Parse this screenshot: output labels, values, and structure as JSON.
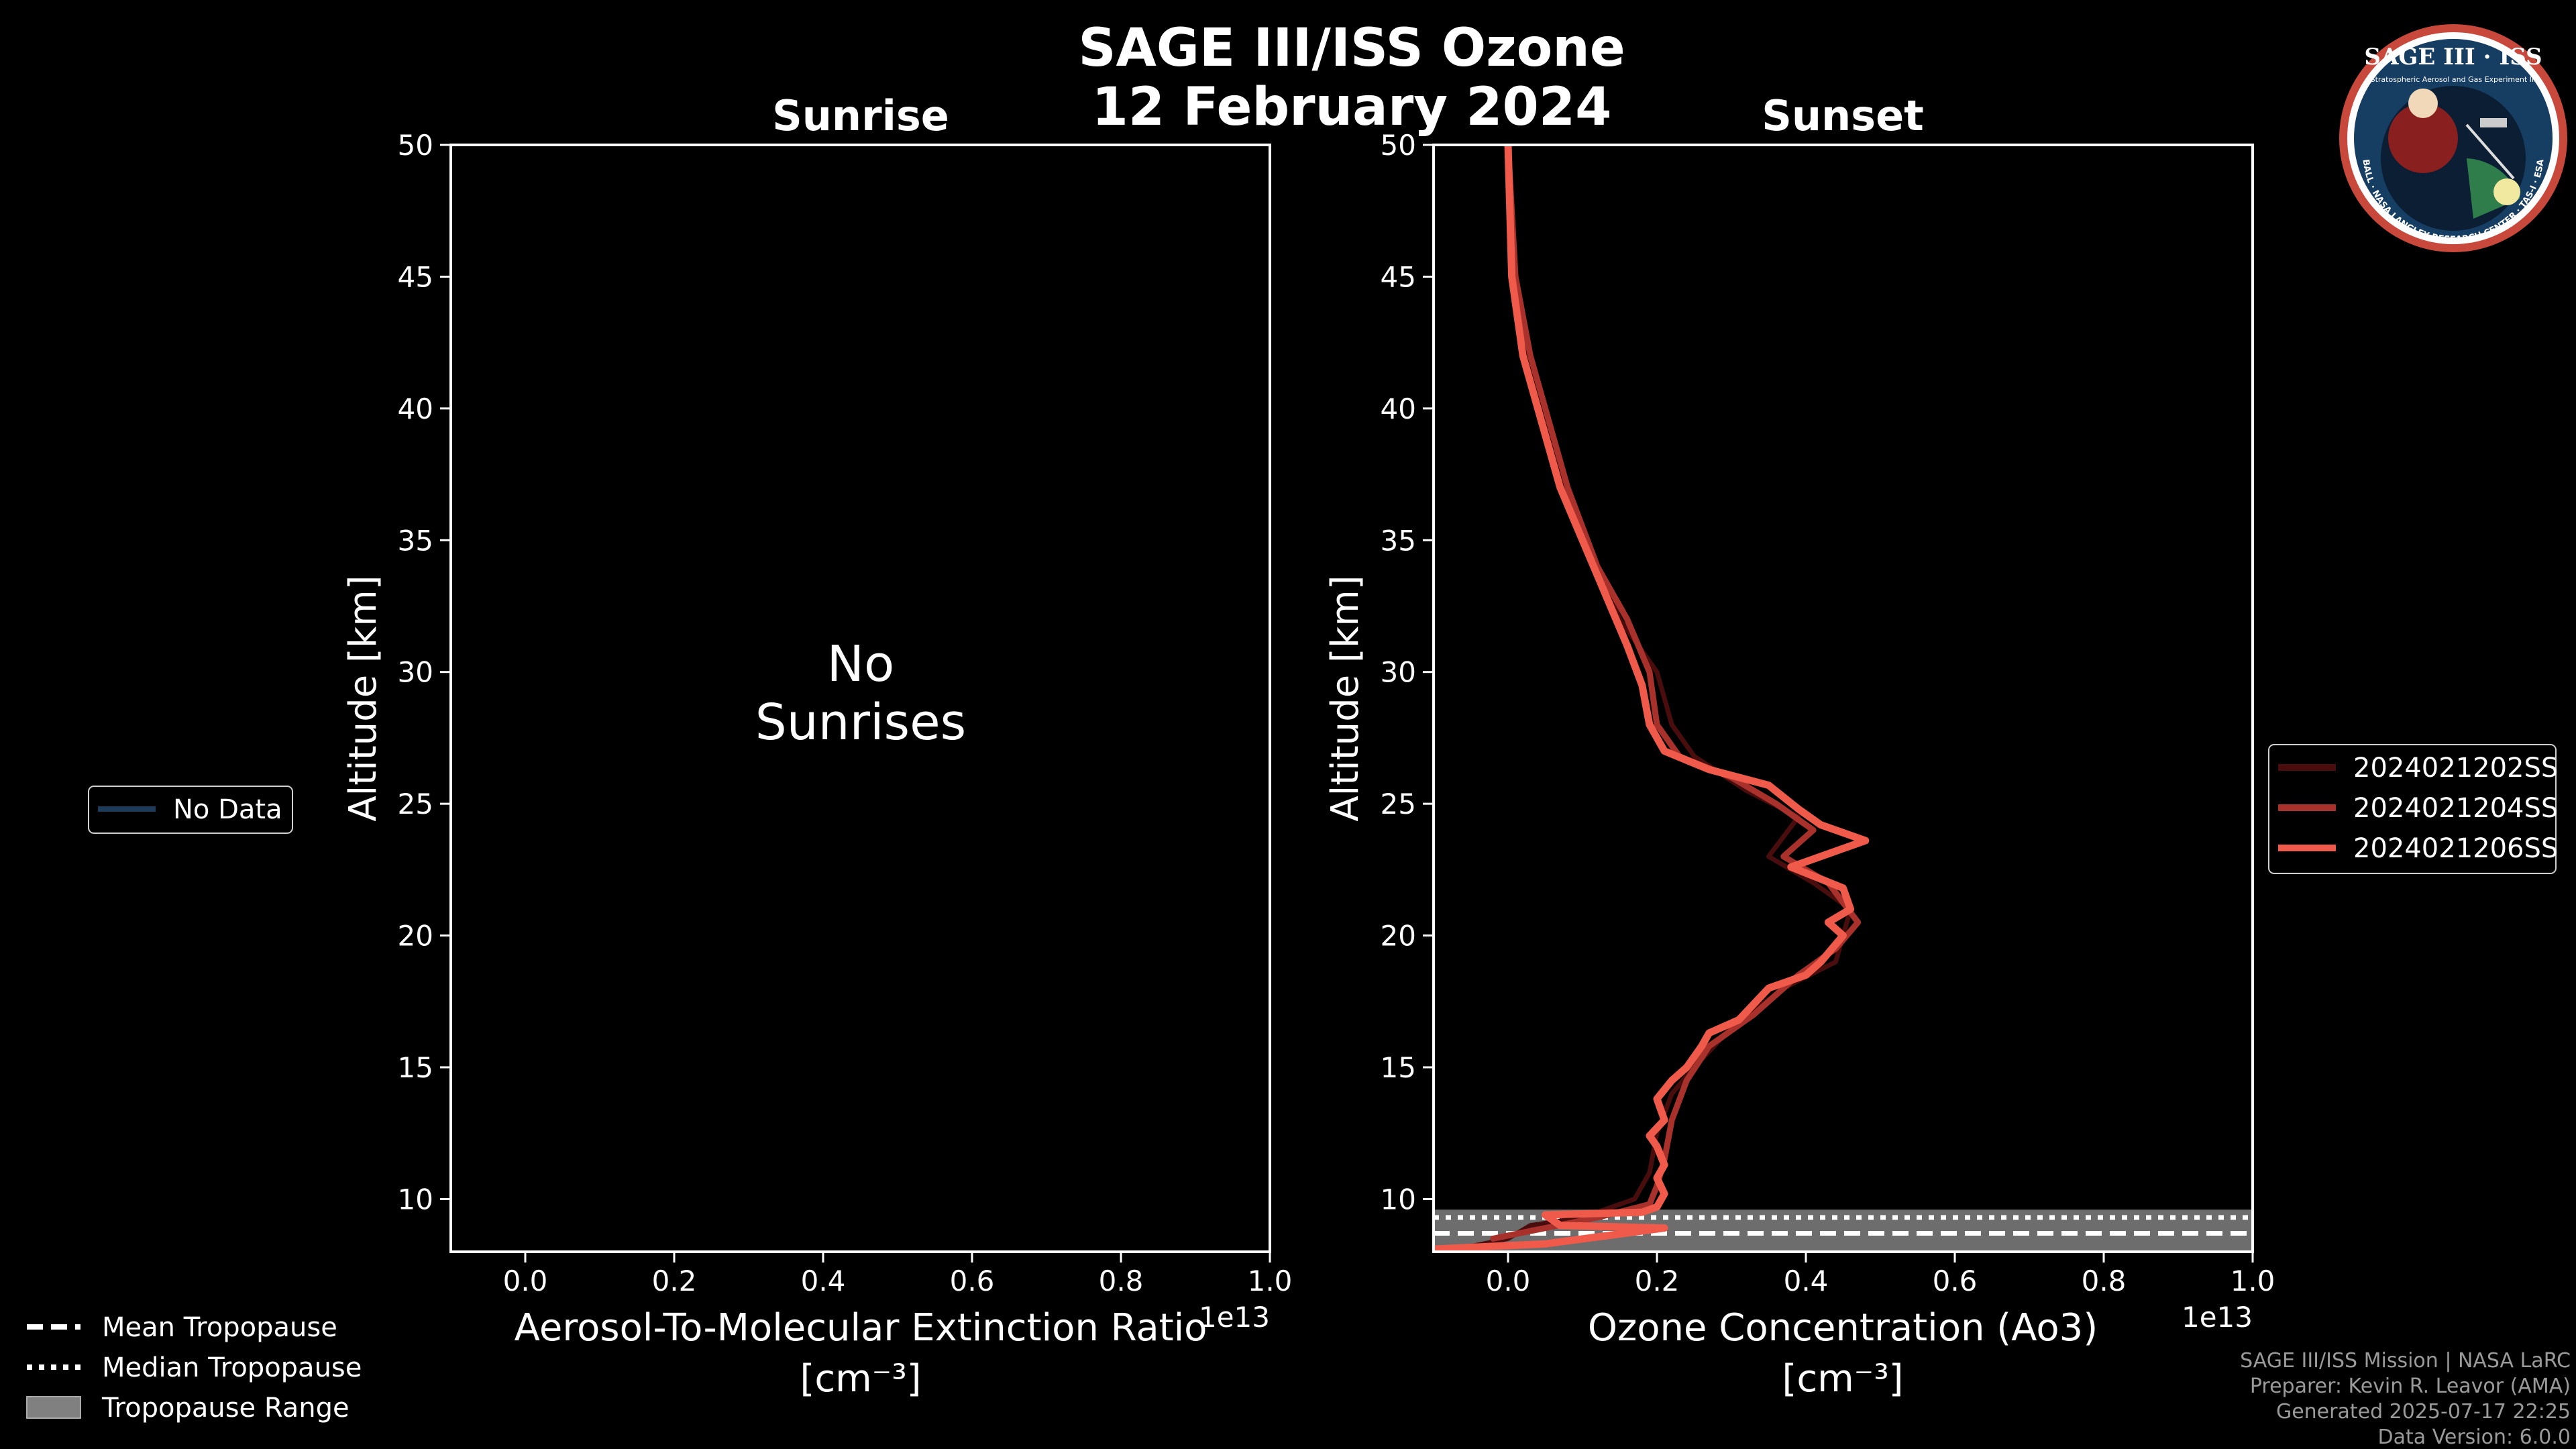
{
  "figure": {
    "title_line1": "SAGE III/ISS Ozone",
    "title_line2": "12 February 2024",
    "credits": [
      "SAGE III/ISS Mission | NASA LaRC",
      "Preparer: Kevin R. Leavor (AMA)",
      "Generated 2025-07-17 22:25",
      "Data Version: 6.0.0"
    ],
    "logo": {
      "title": "SAGE III · ISS",
      "subtitle": "Stratospheric Aerosol and Gas Experiment III",
      "ring_text": "BALL · NASA LANGLEY RESEARCH CENTER · TAS-I · ESA"
    },
    "left_legend": {
      "items": [
        {
          "label": "No Data",
          "color": "#1f3b5a"
        }
      ]
    },
    "tropopause_legend": {
      "items": [
        {
          "label": "Mean Tropopause",
          "style": "dashed"
        },
        {
          "label": "Median Tropopause",
          "style": "dotted"
        },
        {
          "label": "Tropopause Range",
          "style": "patch",
          "color": "#808080"
        }
      ]
    },
    "right_legend": {
      "items": [
        {
          "label": "2024021202SS",
          "color": "#4a0d0d"
        },
        {
          "label": "2024021204SS",
          "color": "#a8322b"
        },
        {
          "label": "2024021206SS",
          "color": "#f05a4a"
        }
      ]
    }
  },
  "chart_data": [
    {
      "type": "line",
      "panel": "left",
      "title": "Sunrise",
      "xlabel": "Aerosol-To-Molecular Extinction Ratio",
      "xlabel_units": "[cm⁻³]",
      "ylabel": "Altitude [km]",
      "xlim": [
        -0.1,
        1.0
      ],
      "ylim": [
        8,
        50
      ],
      "x_ticks": [
        "0.0",
        "0.2",
        "0.4",
        "0.6",
        "0.8",
        "1.0"
      ],
      "y_ticks": [
        "10",
        "15",
        "20",
        "25",
        "30",
        "35",
        "40",
        "45",
        "50"
      ],
      "x_offset_text": "1e13",
      "annotation": "No\nSunrises",
      "series": []
    },
    {
      "type": "line",
      "panel": "right",
      "title": "Sunset",
      "xlabel": "Ozone Concentration (Ao3)",
      "xlabel_units": "[cm⁻³]",
      "ylabel": "Altitude [km]",
      "xlim": [
        -0.1,
        1.0
      ],
      "ylim": [
        8,
        50
      ],
      "x_ticks": [
        "0.0",
        "0.2",
        "0.4",
        "0.6",
        "0.8",
        "1.0"
      ],
      "y_ticks": [
        "10",
        "15",
        "20",
        "25",
        "30",
        "35",
        "40",
        "45",
        "50"
      ],
      "x_offset_text": "1e13",
      "tropopause": {
        "mean": 8.7,
        "median": 9.3,
        "range": [
          8.0,
          9.6
        ]
      },
      "series": [
        {
          "name": "2024021202SS",
          "color": "#4a0d0d",
          "points": [
            [
              0.0,
              50
            ],
            [
              0.01,
              45
            ],
            [
              0.03,
              42
            ],
            [
              0.05,
              40
            ],
            [
              0.08,
              37
            ],
            [
              0.12,
              34
            ],
            [
              0.15,
              32
            ],
            [
              0.2,
              30
            ],
            [
              0.22,
              28
            ],
            [
              0.25,
              26.8
            ],
            [
              0.32,
              25.5
            ],
            [
              0.39,
              24.5
            ],
            [
              0.35,
              23
            ],
            [
              0.41,
              22
            ],
            [
              0.46,
              21
            ],
            [
              0.45,
              20
            ],
            [
              0.44,
              19
            ],
            [
              0.37,
              18
            ],
            [
              0.3,
              16.5
            ],
            [
              0.25,
              15
            ],
            [
              0.22,
              14
            ],
            [
              0.2,
              12.5
            ],
            [
              0.19,
              11
            ],
            [
              0.17,
              10
            ],
            [
              0.1,
              9.3
            ],
            [
              0.03,
              9
            ],
            [
              0.0,
              8.5
            ],
            [
              -0.05,
              8.2
            ]
          ]
        },
        {
          "name": "2024021204SS",
          "color": "#a8322b",
          "points": [
            [
              0.0,
              50
            ],
            [
              0.01,
              45
            ],
            [
              0.03,
              42
            ],
            [
              0.05,
              40
            ],
            [
              0.08,
              37
            ],
            [
              0.12,
              34
            ],
            [
              0.16,
              32
            ],
            [
              0.19,
              30
            ],
            [
              0.2,
              28
            ],
            [
              0.23,
              26.8
            ],
            [
              0.3,
              26
            ],
            [
              0.36,
              25
            ],
            [
              0.41,
              24
            ],
            [
              0.37,
              23
            ],
            [
              0.43,
              22
            ],
            [
              0.47,
              20.5
            ],
            [
              0.44,
              19.5
            ],
            [
              0.39,
              18.5
            ],
            [
              0.33,
              17
            ],
            [
              0.27,
              15.8
            ],
            [
              0.24,
              14.5
            ],
            [
              0.22,
              13
            ],
            [
              0.21,
              11.5
            ],
            [
              0.2,
              10.5
            ],
            [
              0.19,
              9.8
            ],
            [
              0.12,
              9.3
            ],
            [
              0.05,
              8.9
            ],
            [
              -0.02,
              8.5
            ]
          ]
        },
        {
          "name": "2024021206SS",
          "color": "#f05a4a",
          "points": [
            [
              0.0,
              50
            ],
            [
              0.005,
              45
            ],
            [
              0.02,
              42
            ],
            [
              0.04,
              40
            ],
            [
              0.07,
              37
            ],
            [
              0.1,
              35
            ],
            [
              0.13,
              33
            ],
            [
              0.16,
              31
            ],
            [
              0.18,
              29.5
            ],
            [
              0.19,
              28
            ],
            [
              0.21,
              27
            ],
            [
              0.27,
              26.3
            ],
            [
              0.35,
              25.7
            ],
            [
              0.39,
              24.8
            ],
            [
              0.42,
              24.2
            ],
            [
              0.48,
              23.6
            ],
            [
              0.38,
              22.6
            ],
            [
              0.45,
              21.8
            ],
            [
              0.46,
              21
            ],
            [
              0.43,
              20.5
            ],
            [
              0.45,
              20
            ],
            [
              0.42,
              19
            ],
            [
              0.4,
              18.5
            ],
            [
              0.35,
              18
            ],
            [
              0.31,
              16.8
            ],
            [
              0.27,
              16.3
            ],
            [
              0.26,
              15.8
            ],
            [
              0.24,
              15
            ],
            [
              0.22,
              14.5
            ],
            [
              0.2,
              13.8
            ],
            [
              0.21,
              13
            ],
            [
              0.19,
              12.4
            ],
            [
              0.2,
              12
            ],
            [
              0.21,
              11.3
            ],
            [
              0.2,
              10.8
            ],
            [
              0.21,
              10.2
            ],
            [
              0.2,
              9.7
            ],
            [
              0.18,
              9.5
            ],
            [
              0.05,
              9.4
            ],
            [
              0.07,
              9.0
            ],
            [
              0.21,
              8.9
            ],
            [
              0.05,
              8.3
            ],
            [
              -0.1,
              8.1
            ]
          ]
        }
      ]
    }
  ]
}
